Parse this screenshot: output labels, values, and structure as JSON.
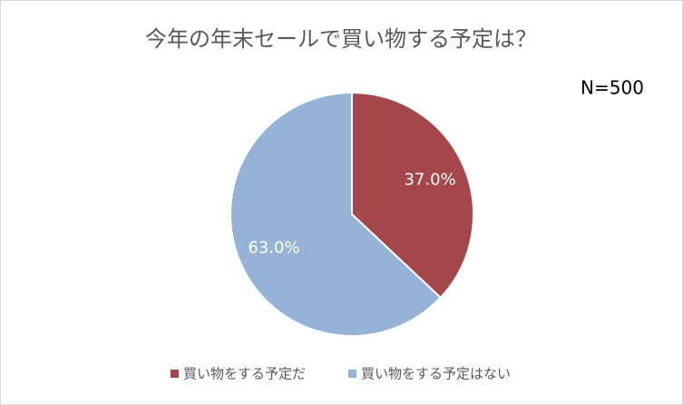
{
  "chart_data": {
    "type": "pie",
    "title": "今年の年末セールで買い物する予定は？",
    "annotation": "N=500",
    "categories": [
      "買い物をする予定だ",
      "買い物をする予定はない"
    ],
    "values": [
      37.0,
      63.0
    ],
    "value_labels": [
      "37.0%",
      "63.0%"
    ],
    "colors": [
      "#a5474a",
      "#95b3d7"
    ],
    "legend": "bottom"
  }
}
